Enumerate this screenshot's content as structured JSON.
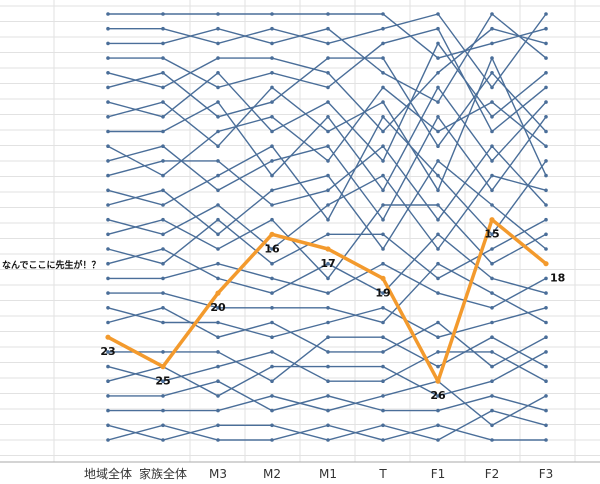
{
  "colors": {
    "background": "#ffffff",
    "grid": "#e2e2e2",
    "axis": "#aaaaaa",
    "series": "#4a6e99",
    "highlight": "#f39a2d"
  },
  "chart_data": {
    "type": "line",
    "categories": [
      "地域全体",
      "家族全体",
      "M3",
      "M2",
      "M1",
      "T",
      "F1",
      "F2",
      "F3"
    ],
    "ranks": 30,
    "yaxis": {
      "inverted": true,
      "range": [
        1,
        30
      ],
      "tick_labels_shown": false
    },
    "grid": {
      "vertical": true,
      "horizontal": true
    },
    "series": [
      {
        "values": [
          1,
          1,
          1,
          1,
          1,
          1,
          4,
          3,
          2
        ]
      },
      {
        "values": [
          2,
          2,
          3,
          2,
          3,
          2,
          1,
          6,
          1
        ]
      },
      {
        "values": [
          3,
          3,
          2,
          3,
          2,
          5,
          7,
          1,
          4
        ]
      },
      {
        "values": [
          4,
          4,
          6,
          5,
          6,
          3,
          2,
          9,
          6
        ]
      },
      {
        "values": [
          5,
          6,
          4,
          4,
          5,
          9,
          5,
          2,
          3
        ]
      },
      {
        "values": [
          6,
          5,
          8,
          7,
          4,
          4,
          10,
          5,
          9
        ]
      },
      {
        "values": [
          7,
          8,
          5,
          9,
          7,
          11,
          3,
          8,
          5
        ]
      },
      {
        "values": [
          8,
          7,
          10,
          6,
          9,
          7,
          13,
          4,
          12
        ]
      },
      {
        "values": [
          9,
          9,
          7,
          12,
          8,
          13,
          6,
          11,
          7
        ]
      },
      {
        "values": [
          10,
          12,
          9,
          8,
          11,
          6,
          9,
          7,
          10
        ]
      },
      {
        "values": [
          11,
          10,
          13,
          11,
          10,
          15,
          8,
          13,
          8
        ]
      },
      {
        "values": [
          12,
          11,
          11,
          14,
          13,
          10,
          15,
          10,
          14
        ]
      },
      {
        "values": [
          13,
          14,
          12,
          10,
          15,
          8,
          12,
          16,
          11
        ]
      },
      {
        "values": [
          14,
          13,
          16,
          13,
          12,
          17,
          11,
          14,
          17
        ]
      },
      {
        "values": [
          15,
          16,
          14,
          17,
          14,
          12,
          17,
          12,
          13
        ]
      },
      {
        "values": [
          16,
          15,
          17,
          15,
          19,
          14,
          14,
          18,
          16
        ]
      },
      {
        "values": [
          17,
          18,
          15,
          18,
          16,
          16,
          19,
          17,
          15
        ]
      },
      {
        "values": [
          18,
          17,
          19,
          20,
          18,
          20,
          16,
          19,
          20
        ]
      },
      {
        "values": [
          19,
          19,
          18,
          19,
          20,
          18,
          20,
          21,
          19
        ]
      },
      {
        "values": [
          20,
          20,
          21,
          21,
          21,
          22,
          18,
          20,
          22
        ]
      },
      {
        "values": [
          21,
          22,
          22,
          23,
          22,
          21,
          23,
          22,
          21
        ]
      },
      {
        "values": [
          22,
          21,
          23,
          22,
          24,
          24,
          22,
          25,
          23
        ]
      },
      {
        "values": [
          24,
          24,
          24,
          26,
          23,
          23,
          25,
          23,
          25
        ]
      },
      {
        "values": [
          25,
          26,
          25,
          24,
          26,
          26,
          24,
          24,
          26
        ]
      },
      {
        "values": [
          26,
          25,
          27,
          25,
          25,
          25,
          27,
          26,
          24
        ]
      },
      {
        "values": [
          27,
          27,
          26,
          28,
          27,
          28,
          28,
          27,
          28
        ]
      },
      {
        "values": [
          28,
          28,
          28,
          27,
          28,
          27,
          26,
          29,
          27
        ]
      },
      {
        "values": [
          29,
          30,
          29,
          29,
          30,
          29,
          30,
          28,
          29
        ]
      },
      {
        "values": [
          30,
          29,
          30,
          30,
          29,
          30,
          29,
          30,
          30
        ]
      }
    ],
    "highlight": {
      "values": [
        23,
        25,
        20,
        16,
        17,
        19,
        26,
        15,
        18
      ],
      "labels": [
        "23",
        "25",
        "20",
        "16",
        "17",
        "19",
        "26",
        "15",
        "18"
      ]
    },
    "annotation": "なんでここに先生が！？"
  }
}
